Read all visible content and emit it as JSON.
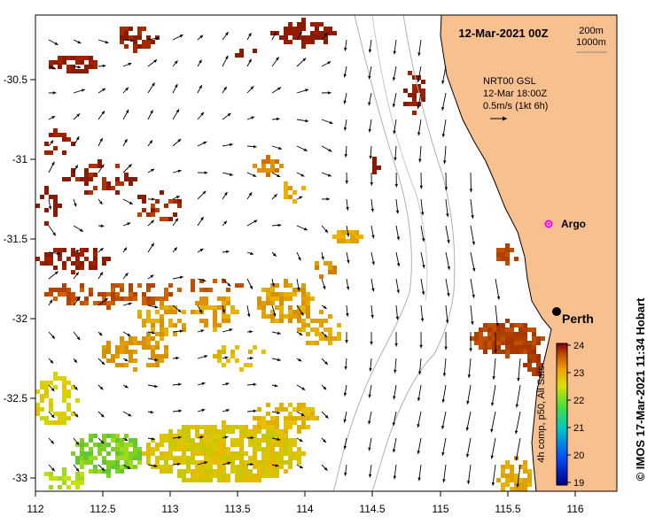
{
  "title": "12-Mar-2021 00Z",
  "depth_contours": [
    "200m",
    "1000m"
  ],
  "current_legend": {
    "line1": "NRT00 GSL",
    "line2": "12-Mar 18:00Z",
    "line3": "0.5m/s (1kt 6h)"
  },
  "x_axis": {
    "ticks": [
      "112",
      "112.5",
      "113",
      "113.5",
      "114",
      "114.5",
      "115",
      "115.5",
      "116"
    ]
  },
  "y_axis": {
    "ticks": [
      "-30.5",
      "-31",
      "-31.5",
      "-32",
      "-32.5",
      "-33"
    ]
  },
  "places": [
    {
      "name": "Argo",
      "marker": "argo-float",
      "color": "#ff00ff"
    },
    {
      "name": "Perth",
      "marker": "city-dot",
      "color": "#000000"
    }
  ],
  "colorbar": {
    "ticks": [
      "24",
      "23",
      "22",
      "21",
      "20",
      "19"
    ],
    "label": "4h comp, p50, All Sats"
  },
  "credit": "© IMOS 17-Mar-2021 11:34 Hobart",
  "colors": {
    "land": "#f9c08f",
    "ocean": "#ffffff"
  }
}
